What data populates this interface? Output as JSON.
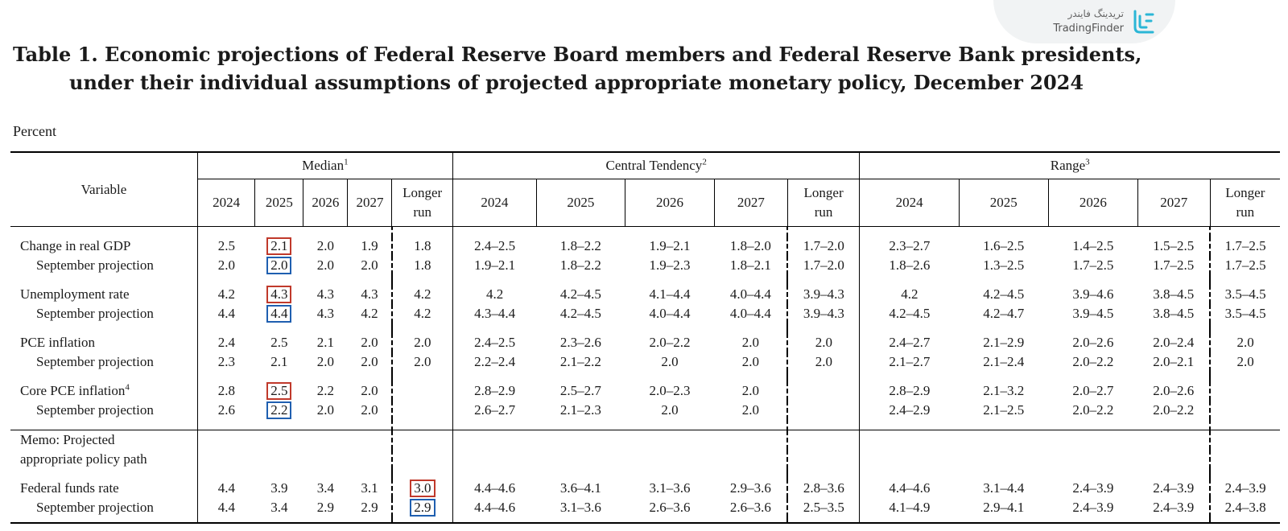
{
  "watermark": {
    "brand_fa": "تریدینگ فایندر",
    "brand_en": "TradingFinder"
  },
  "title": {
    "line1": "Table 1.  Economic projections of Federal Reserve Board members and Federal Reserve Bank presidents,",
    "line2": "under their individual assumptions of projected appropriate monetary policy, December 2024"
  },
  "unit_label": "Percent",
  "header": {
    "variable": "Variable",
    "median": "Median",
    "median_note": "1",
    "central": "Central Tendency",
    "central_note": "2",
    "range": "Range",
    "range_note": "3",
    "years": [
      "2024",
      "2025",
      "2026",
      "2027"
    ],
    "longer_run_1": "Longer",
    "longer_run_2": "run"
  },
  "rows": {
    "gdp": {
      "label": "Change in real GDP",
      "values": [
        "2.5",
        "2.1",
        "2.0",
        "1.9",
        "1.8",
        "2.4–2.5",
        "1.8–2.2",
        "1.9–2.1",
        "1.8–2.0",
        "1.7–2.0",
        "2.3–2.7",
        "1.6–2.5",
        "1.4–2.5",
        "1.5–2.5",
        "1.7–2.5"
      ]
    },
    "gdp_sep": {
      "label": "September projection",
      "values": [
        "2.0",
        "2.0",
        "2.0",
        "2.0",
        "1.8",
        "1.9–2.1",
        "1.8–2.2",
        "1.9–2.3",
        "1.8–2.1",
        "1.7–2.0",
        "1.8–2.6",
        "1.3–2.5",
        "1.7–2.5",
        "1.7–2.5",
        "1.7–2.5"
      ]
    },
    "unemp": {
      "label": "Unemployment rate",
      "values": [
        "4.2",
        "4.3",
        "4.3",
        "4.3",
        "4.2",
        "4.2",
        "4.2–4.5",
        "4.1–4.4",
        "4.0–4.4",
        "3.9–4.3",
        "4.2",
        "4.2–4.5",
        "3.9–4.6",
        "3.8–4.5",
        "3.5–4.5"
      ]
    },
    "unemp_sep": {
      "label": "September projection",
      "values": [
        "4.4",
        "4.4",
        "4.3",
        "4.2",
        "4.2",
        "4.3–4.4",
        "4.2–4.5",
        "4.0–4.4",
        "4.0–4.4",
        "3.9–4.3",
        "4.2–4.5",
        "4.2–4.7",
        "3.9–4.5",
        "3.8–4.5",
        "3.5–4.5"
      ]
    },
    "pce": {
      "label": "PCE inflation",
      "values": [
        "2.4",
        "2.5",
        "2.1",
        "2.0",
        "2.0",
        "2.4–2.5",
        "2.3–2.6",
        "2.0–2.2",
        "2.0",
        "2.0",
        "2.4–2.7",
        "2.1–2.9",
        "2.0–2.6",
        "2.0–2.4",
        "2.0"
      ]
    },
    "pce_sep": {
      "label": "September projection",
      "values": [
        "2.3",
        "2.1",
        "2.0",
        "2.0",
        "2.0",
        "2.2–2.4",
        "2.1–2.2",
        "2.0",
        "2.0",
        "2.0",
        "2.1–2.7",
        "2.1–2.4",
        "2.0–2.2",
        "2.0–2.1",
        "2.0"
      ]
    },
    "core": {
      "label": "Core PCE inflation",
      "note": "4",
      "values": [
        "2.8",
        "2.5",
        "2.2",
        "2.0",
        "",
        "2.8–2.9",
        "2.5–2.7",
        "2.0–2.3",
        "2.0",
        "",
        "2.8–2.9",
        "2.1–3.2",
        "2.0–2.7",
        "2.0–2.6",
        ""
      ]
    },
    "core_sep": {
      "label": "September projection",
      "values": [
        "2.6",
        "2.2",
        "2.0",
        "2.0",
        "",
        "2.6–2.7",
        "2.1–2.3",
        "2.0",
        "2.0",
        "",
        "2.4–2.9",
        "2.1–2.5",
        "2.0–2.2",
        "2.0–2.2",
        ""
      ]
    },
    "memo": {
      "label_1": "Memo: Projected",
      "label_2": "appropriate policy path"
    },
    "ffr": {
      "label": "Federal funds rate",
      "values": [
        "4.4",
        "3.9",
        "3.4",
        "3.1",
        "3.0",
        "4.4–4.6",
        "3.6–4.1",
        "3.1–3.6",
        "2.9–3.6",
        "2.8–3.6",
        "4.4–4.6",
        "3.1–4.4",
        "2.4–3.9",
        "2.4–3.9",
        "2.4–3.9"
      ]
    },
    "ffr_sep": {
      "label": "September projection",
      "values": [
        "4.4",
        "3.4",
        "2.9",
        "2.9",
        "2.9",
        "4.4–4.6",
        "3.1–3.6",
        "2.6–3.6",
        "2.6–3.6",
        "2.5–3.5",
        "4.1–4.9",
        "2.9–4.1",
        "2.4–3.9",
        "2.4–3.9",
        "2.4–3.8"
      ]
    }
  },
  "highlight_colors": {
    "current": "#c0392b",
    "september": "#1f5fb0"
  }
}
